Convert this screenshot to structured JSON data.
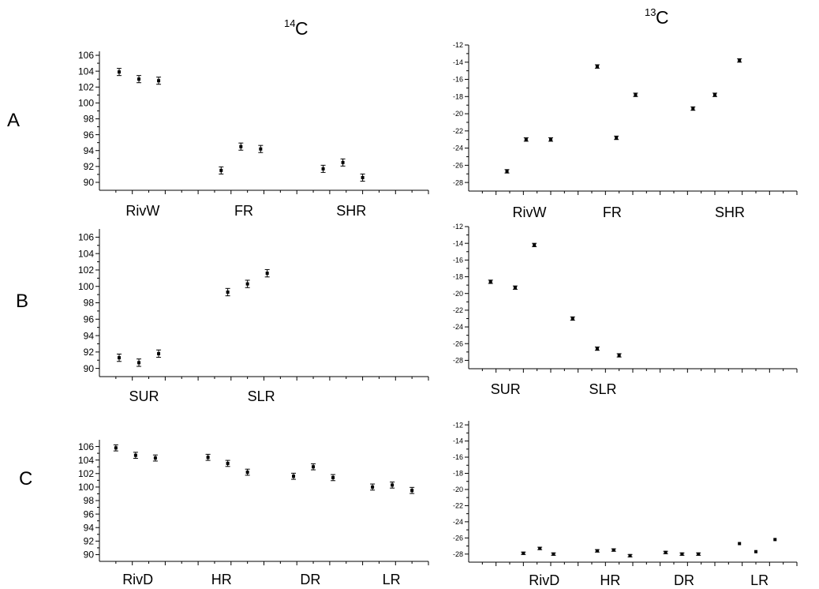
{
  "column_headers": [
    {
      "mass": "14",
      "element": "C"
    },
    {
      "mass": "13",
      "element": "C"
    }
  ],
  "row_labels": [
    "A",
    "B",
    "C"
  ],
  "chart_data": [
    {
      "id": "A-14C",
      "type": "scatter",
      "title": "",
      "xlabel": "",
      "ylabel": "",
      "ylim": [
        89,
        106.5
      ],
      "yticks": [
        90,
        92,
        94,
        96,
        98,
        100,
        102,
        104,
        106
      ],
      "grid": false,
      "groups": [
        {
          "label": "RivW",
          "x": 0.8,
          "points": [
            {
              "x": 0.6,
              "y": 103.9,
              "err": 0.45
            },
            {
              "x": 1.2,
              "y": 103.0,
              "err": 0.45
            },
            {
              "x": 1.8,
              "y": 102.8,
              "err": 0.45
            }
          ]
        },
        {
          "label": "FR",
          "x": 4.1,
          "points": [
            {
              "x": 3.7,
              "y": 91.5,
              "err": 0.45
            },
            {
              "x": 4.3,
              "y": 94.5,
              "err": 0.45
            },
            {
              "x": 4.9,
              "y": 94.2,
              "err": 0.45
            }
          ]
        },
        {
          "label": "SHR",
          "x": 7.2,
          "points": [
            {
              "x": 6.8,
              "y": 91.7,
              "err": 0.45
            },
            {
              "x": 7.4,
              "y": 92.5,
              "err": 0.45
            },
            {
              "x": 8.0,
              "y": 90.6,
              "err": 0.45
            }
          ]
        }
      ]
    },
    {
      "id": "A-13C",
      "type": "scatter",
      "title": "",
      "xlabel": "",
      "ylabel": "",
      "ylim": [
        -29,
        -12
      ],
      "yticks": [
        -12,
        -14,
        -16,
        -18,
        -20,
        -22,
        -24,
        -26,
        -28
      ],
      "grid": false,
      "groups": [
        {
          "label": "RivW",
          "x": 1.6,
          "points": [
            {
              "x": 1.4,
              "y": -26.7,
              "err": 0.2
            },
            {
              "x": 2.1,
              "y": -23.0,
              "err": 0.2
            },
            {
              "x": 3.0,
              "y": -23.0,
              "err": 0.2
            }
          ]
        },
        {
          "label": "FR",
          "x": 4.9,
          "points": [
            {
              "x": 4.7,
              "y": -14.5,
              "err": 0.2
            },
            {
              "x": 5.4,
              "y": -22.8,
              "err": 0.2
            },
            {
              "x": 6.1,
              "y": -17.8,
              "err": 0.2
            }
          ]
        },
        {
          "label": "SHR",
          "x": 9.0,
          "points": [
            {
              "x": 8.2,
              "y": -19.4,
              "err": 0.2
            },
            {
              "x": 9.0,
              "y": -17.8,
              "err": 0.2
            },
            {
              "x": 9.9,
              "y": -13.8,
              "err": 0.2
            }
          ]
        }
      ]
    },
    {
      "id": "B-14C",
      "type": "scatter",
      "title": "",
      "xlabel": "",
      "ylabel": "",
      "ylim": [
        89,
        107
      ],
      "yticks": [
        90,
        92,
        94,
        96,
        98,
        100,
        102,
        104,
        106
      ],
      "grid": false,
      "groups": [
        {
          "label": "SUR",
          "x": 0.9,
          "points": [
            {
              "x": 0.6,
              "y": 91.3,
              "err": 0.45
            },
            {
              "x": 1.2,
              "y": 90.7,
              "err": 0.45
            },
            {
              "x": 1.8,
              "y": 91.8,
              "err": 0.45
            }
          ]
        },
        {
          "label": "SLR",
          "x": 4.5,
          "points": [
            {
              "x": 3.9,
              "y": 99.3,
              "err": 0.45
            },
            {
              "x": 4.5,
              "y": 100.3,
              "err": 0.45
            },
            {
              "x": 5.1,
              "y": 101.6,
              "err": 0.45
            }
          ]
        }
      ]
    },
    {
      "id": "B-13C",
      "type": "scatter",
      "title": "",
      "xlabel": "",
      "ylabel": "",
      "ylim": [
        -29,
        -12
      ],
      "yticks": [
        -12,
        -14,
        -16,
        -18,
        -20,
        -22,
        -24,
        -26,
        -28
      ],
      "grid": false,
      "groups": [
        {
          "label": "SUR",
          "x": 0.8,
          "points": [
            {
              "x": 0.8,
              "y": -18.6,
              "err": 0.2
            },
            {
              "x": 1.7,
              "y": -19.3,
              "err": 0.2
            },
            {
              "x": 2.4,
              "y": -14.2,
              "err": 0.2
            }
          ]
        },
        {
          "label": "SLR",
          "x": 4.4,
          "points": [
            {
              "x": 3.8,
              "y": -23.0,
              "err": 0.2
            },
            {
              "x": 4.7,
              "y": -26.6,
              "err": 0.2
            },
            {
              "x": 5.5,
              "y": -27.4,
              "err": 0.2
            }
          ]
        }
      ]
    },
    {
      "id": "C-14C",
      "type": "scatter",
      "title": "",
      "xlabel": "",
      "ylabel": "",
      "ylim": [
        89,
        107
      ],
      "yticks": [
        90,
        92,
        94,
        96,
        98,
        100,
        102,
        104,
        106
      ],
      "grid": false,
      "groups": [
        {
          "label": "RivD",
          "x": 0.7,
          "points": [
            {
              "x": 0.5,
              "y": 105.8,
              "err": 0.45
            },
            {
              "x": 1.1,
              "y": 104.7,
              "err": 0.45
            },
            {
              "x": 1.7,
              "y": 104.3,
              "err": 0.45
            }
          ]
        },
        {
          "label": "HR",
          "x": 3.4,
          "points": [
            {
              "x": 3.3,
              "y": 104.4,
              "err": 0.45
            },
            {
              "x": 3.9,
              "y": 103.5,
              "err": 0.45
            },
            {
              "x": 4.5,
              "y": 102.2,
              "err": 0.45
            }
          ]
        },
        {
          "label": "DR",
          "x": 6.1,
          "points": [
            {
              "x": 5.9,
              "y": 101.6,
              "err": 0.45
            },
            {
              "x": 6.5,
              "y": 103.0,
              "err": 0.45
            },
            {
              "x": 7.1,
              "y": 101.4,
              "err": 0.45
            }
          ]
        },
        {
          "label": "LR",
          "x": 8.6,
          "points": [
            {
              "x": 8.3,
              "y": 100.0,
              "err": 0.45
            },
            {
              "x": 8.9,
              "y": 100.3,
              "err": 0.45
            },
            {
              "x": 9.5,
              "y": 99.5,
              "err": 0.45
            }
          ]
        }
      ]
    },
    {
      "id": "C-13C",
      "type": "scatter",
      "title": "",
      "xlabel": "",
      "ylabel": "",
      "ylim": [
        -29,
        -11.5
      ],
      "yticks": [
        -12,
        -14,
        -16,
        -18,
        -20,
        -22,
        -24,
        -26,
        -28
      ],
      "grid": false,
      "groups": [
        {
          "label": "RivD",
          "x": 2.2,
          "points": [
            {
              "x": 2.0,
              "y": -27.9,
              "err": 0.15
            },
            {
              "x": 2.6,
              "y": -27.3,
              "err": 0.15
            },
            {
              "x": 3.1,
              "y": -28.0,
              "err": 0.15
            }
          ]
        },
        {
          "label": "HR",
          "x": 4.8,
          "points": [
            {
              "x": 4.7,
              "y": -27.6,
              "err": 0.15
            },
            {
              "x": 5.3,
              "y": -27.5,
              "err": 0.15
            },
            {
              "x": 5.9,
              "y": -28.2,
              "err": 0.15
            }
          ]
        },
        {
          "label": "DR",
          "x": 7.5,
          "points": [
            {
              "x": 7.2,
              "y": -27.8,
              "err": 0.15
            },
            {
              "x": 7.8,
              "y": -28.0,
              "err": 0.15
            },
            {
              "x": 8.4,
              "y": -28.0,
              "err": 0.15
            }
          ]
        },
        {
          "label": "LR",
          "x": 10.3,
          "points": [
            {
              "x": 9.9,
              "y": -26.7,
              "err": 0
            },
            {
              "x": 10.5,
              "y": -27.7,
              "err": 0
            },
            {
              "x": 11.2,
              "y": -26.2,
              "err": 0
            }
          ]
        }
      ]
    }
  ]
}
